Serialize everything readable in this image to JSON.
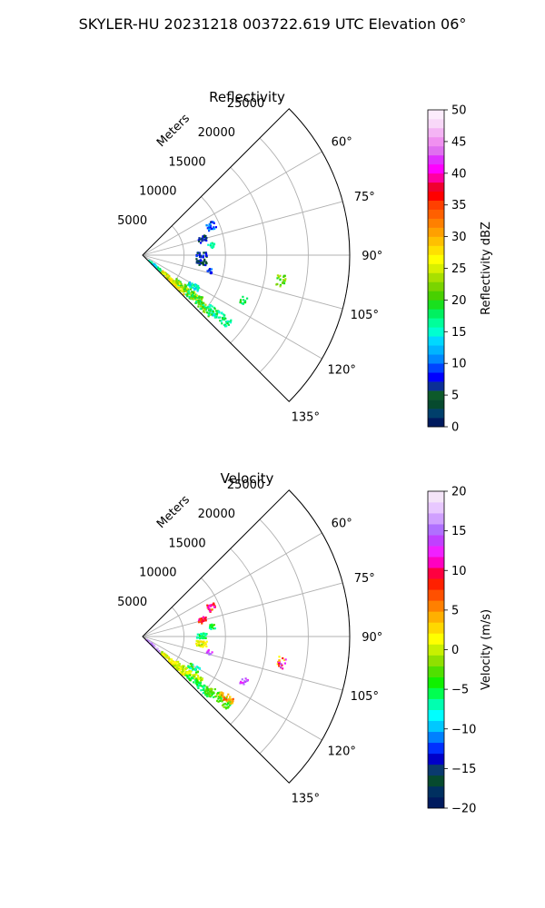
{
  "figure": {
    "title": "SKYLER-HU  20231218  003722.619 UTC Elevation 06°"
  },
  "chart_data": [
    {
      "type": "heatmap",
      "subtype": "polar-sector radar PPI",
      "title": "Reflectivity",
      "radial_axis_label": "Meters",
      "radial_ticks": [
        5000,
        10000,
        15000,
        20000,
        25000
      ],
      "radial_tick_labels": [
        "5000",
        "10000",
        "15000",
        "20000",
        "25000"
      ],
      "r_max": 25000,
      "azimuth_range_deg": [
        45,
        135
      ],
      "azimuth_ticks": [
        60,
        75,
        90,
        105,
        120,
        135
      ],
      "azimuth_tick_labels": [
        "60°",
        "75°",
        "90°",
        "105°",
        "120°",
        "135°"
      ],
      "grid": true,
      "colorbar": {
        "label": "Reflectivity dBZ",
        "range": [
          0,
          50
        ],
        "ticks": [
          0,
          5,
          10,
          15,
          20,
          25,
          30,
          35,
          40,
          45,
          50
        ],
        "tick_labels": [
          "0",
          "5",
          "10",
          "15",
          "20",
          "25",
          "30",
          "35",
          "40",
          "45",
          "50"
        ],
        "colormap": "pyart_NWSRef"
      },
      "echoes": [
        {
          "az_range": [
            128,
            133
          ],
          "r_range": [
            1000,
            4000
          ],
          "value_range": [
            10,
            18
          ]
        },
        {
          "az_range": [
            128,
            134
          ],
          "r_range": [
            3000,
            7000
          ],
          "value_range": [
            22,
            30
          ]
        },
        {
          "az_range": [
            125,
            130
          ],
          "r_range": [
            5000,
            9000
          ],
          "value_range": [
            17,
            26
          ]
        },
        {
          "az_range": [
            128,
            133
          ],
          "r_range": [
            7000,
            11000
          ],
          "value_range": [
            16,
            24
          ]
        },
        {
          "az_range": [
            126,
            131
          ],
          "r_range": [
            10000,
            13500
          ],
          "value_range": [
            14,
            20
          ]
        },
        {
          "az_range": [
            119,
            124
          ],
          "r_range": [
            6500,
            8000
          ],
          "value_range": [
            12,
            18
          ]
        },
        {
          "az_range": [
            64,
            70
          ],
          "r_range": [
            8500,
            9500
          ],
          "value_range": [
            7,
            12
          ]
        },
        {
          "az_range": [
            72,
            78
          ],
          "r_range": [
            7000,
            8000
          ],
          "value_range": [
            3,
            9
          ]
        },
        {
          "az_range": [
            80,
            84
          ],
          "r_range": [
            8000,
            8800
          ],
          "value_range": [
            14,
            18
          ]
        },
        {
          "az_range": [
            94,
            100
          ],
          "r_range": [
            6500,
            7800
          ],
          "value_range": [
            2,
            8
          ]
        },
        {
          "az_range": [
            87,
            92
          ],
          "r_range": [
            6500,
            7800
          ],
          "value_range": [
            5,
            10
          ]
        },
        {
          "az_range": [
            101,
            105
          ],
          "r_range": [
            8000,
            8600
          ],
          "value_range": [
            6,
            11
          ]
        },
        {
          "az_range": [
            98,
            103
          ],
          "r_range": [
            16500,
            17500
          ],
          "value_range": [
            19,
            24
          ]
        },
        {
          "az_range": [
            112,
            116
          ],
          "r_range": [
            13000,
            13800
          ],
          "value_range": [
            16,
            21
          ]
        }
      ]
    },
    {
      "type": "heatmap",
      "subtype": "polar-sector radar PPI",
      "title": "Velocity",
      "radial_axis_label": "Meters",
      "radial_ticks": [
        5000,
        10000,
        15000,
        20000,
        25000
      ],
      "radial_tick_labels": [
        "5000",
        "10000",
        "15000",
        "20000",
        "25000"
      ],
      "r_max": 25000,
      "azimuth_range_deg": [
        45,
        135
      ],
      "azimuth_ticks": [
        60,
        75,
        90,
        105,
        120,
        135
      ],
      "azimuth_tick_labels": [
        "60°",
        "75°",
        "90°",
        "105°",
        "120°",
        "135°"
      ],
      "grid": true,
      "colorbar": {
        "label": "Velocity (m/s)",
        "range": [
          -20,
          20
        ],
        "ticks": [
          -20,
          -15,
          -10,
          -5,
          0,
          5,
          10,
          15,
          20
        ],
        "tick_labels": [
          "−20",
          "−15",
          "−10",
          "−5",
          "0",
          "5",
          "10",
          "15",
          "20"
        ],
        "colormap": "pyart_BuDRd18"
      },
      "echoes": [
        {
          "az_range": [
            128,
            134
          ],
          "r_range": [
            500,
            3000
          ],
          "value_range": [
            14,
            20
          ]
        },
        {
          "az_range": [
            128,
            134
          ],
          "r_range": [
            3000,
            7000
          ],
          "value_range": [
            -2,
            3
          ]
        },
        {
          "az_range": [
            125,
            130
          ],
          "r_range": [
            5000,
            9000
          ],
          "value_range": [
            -2,
            2
          ]
        },
        {
          "az_range": [
            128,
            133
          ],
          "r_range": [
            7000,
            11000
          ],
          "value_range": [
            -7,
            -3
          ]
        },
        {
          "az_range": [
            126,
            131
          ],
          "r_range": [
            10000,
            13500
          ],
          "value_range": [
            -5,
            -1
          ]
        },
        {
          "az_range": [
            124,
            128
          ],
          "r_range": [
            11500,
            13500
          ],
          "value_range": [
            2,
            7
          ]
        },
        {
          "az_range": [
            119,
            124
          ],
          "r_range": [
            6500,
            8000
          ],
          "value_range": [
            -8,
            -2
          ]
        },
        {
          "az_range": [
            64,
            70
          ],
          "r_range": [
            8500,
            9500
          ],
          "value_range": [
            5,
            12
          ]
        },
        {
          "az_range": [
            72,
            78
          ],
          "r_range": [
            7000,
            8000
          ],
          "value_range": [
            6,
            11
          ]
        },
        {
          "az_range": [
            80,
            84
          ],
          "r_range": [
            8000,
            8800
          ],
          "value_range": [
            -7,
            -3
          ]
        },
        {
          "az_range": [
            87,
            92
          ],
          "r_range": [
            6500,
            7800
          ],
          "value_range": [
            -8,
            -4
          ]
        },
        {
          "az_range": [
            94,
            100
          ],
          "r_range": [
            6500,
            7800
          ],
          "value_range": [
            -1,
            3
          ]
        },
        {
          "az_range": [
            101,
            105
          ],
          "r_range": [
            8000,
            8600
          ],
          "value_range": [
            12,
            16
          ]
        },
        {
          "az_range": [
            98,
            103
          ],
          "r_range": [
            16500,
            17500
          ],
          "value_range": [
            1,
            14
          ]
        },
        {
          "az_range": [
            112,
            116
          ],
          "r_range": [
            13000,
            13800
          ],
          "value_range": [
            12,
            15
          ]
        }
      ]
    }
  ]
}
